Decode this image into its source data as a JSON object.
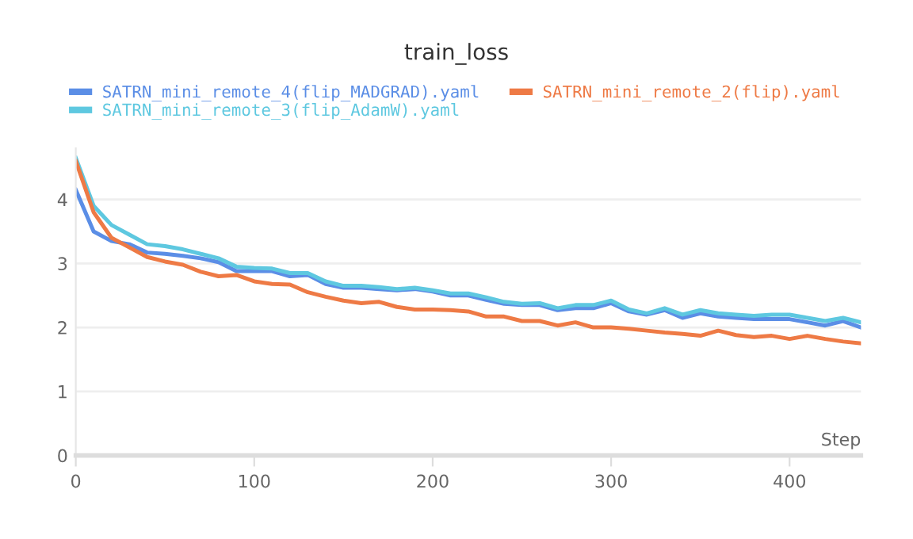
{
  "chart_data": {
    "type": "line",
    "title": "train_loss",
    "xlabel": "Step",
    "legend": "top",
    "grid": "y",
    "line_style": "solid",
    "xlim": [
      0,
      440
    ],
    "xticks": [
      0,
      100,
      200,
      300,
      400
    ],
    "ylim": [
      0,
      4.8
    ],
    "yticks": [
      0,
      1,
      2,
      3,
      4
    ],
    "x": [
      0,
      10,
      20,
      30,
      40,
      50,
      60,
      70,
      80,
      90,
      100,
      110,
      120,
      130,
      140,
      150,
      160,
      170,
      180,
      190,
      200,
      210,
      220,
      230,
      240,
      250,
      260,
      270,
      280,
      290,
      300,
      310,
      320,
      330,
      340,
      350,
      360,
      370,
      380,
      390,
      400,
      410,
      420,
      430,
      440
    ],
    "series": [
      {
        "name": "SATRN_mini_remote_4(flip_MADGRAD).yaml",
        "color": "#5b8ee6",
        "values": [
          4.15,
          3.5,
          3.35,
          3.3,
          3.17,
          3.15,
          3.12,
          3.08,
          3.02,
          2.88,
          2.88,
          2.88,
          2.8,
          2.82,
          2.68,
          2.62,
          2.62,
          2.6,
          2.58,
          2.6,
          2.56,
          2.5,
          2.5,
          2.43,
          2.37,
          2.35,
          2.35,
          2.27,
          2.3,
          2.3,
          2.38,
          2.25,
          2.2,
          2.27,
          2.15,
          2.22,
          2.17,
          2.15,
          2.13,
          2.13,
          2.13,
          2.08,
          2.03,
          2.1,
          2.0
        ]
      },
      {
        "name": "SATRN_mini_remote_3(flip_AdamW).yaml",
        "color": "#5ec8e0",
        "values": [
          4.65,
          3.9,
          3.6,
          3.45,
          3.3,
          3.27,
          3.22,
          3.15,
          3.08,
          2.95,
          2.93,
          2.92,
          2.85,
          2.85,
          2.72,
          2.65,
          2.65,
          2.63,
          2.6,
          2.62,
          2.58,
          2.53,
          2.53,
          2.47,
          2.4,
          2.37,
          2.38,
          2.3,
          2.35,
          2.35,
          2.42,
          2.28,
          2.22,
          2.3,
          2.2,
          2.27,
          2.22,
          2.2,
          2.18,
          2.2,
          2.2,
          2.15,
          2.1,
          2.15,
          2.08
        ]
      },
      {
        "name": "SATRN_mini_remote_2(flip).yaml",
        "color": "#ee7a45",
        "values": [
          4.6,
          3.8,
          3.4,
          3.25,
          3.1,
          3.03,
          2.98,
          2.87,
          2.8,
          2.82,
          2.72,
          2.68,
          2.67,
          2.55,
          2.48,
          2.42,
          2.38,
          2.4,
          2.32,
          2.28,
          2.28,
          2.27,
          2.25,
          2.17,
          2.17,
          2.1,
          2.1,
          2.03,
          2.08,
          2.0,
          2.0,
          1.98,
          1.95,
          1.92,
          1.9,
          1.87,
          1.95,
          1.88,
          1.85,
          1.87,
          1.82,
          1.87,
          1.82,
          1.78,
          1.75
        ]
      }
    ]
  }
}
